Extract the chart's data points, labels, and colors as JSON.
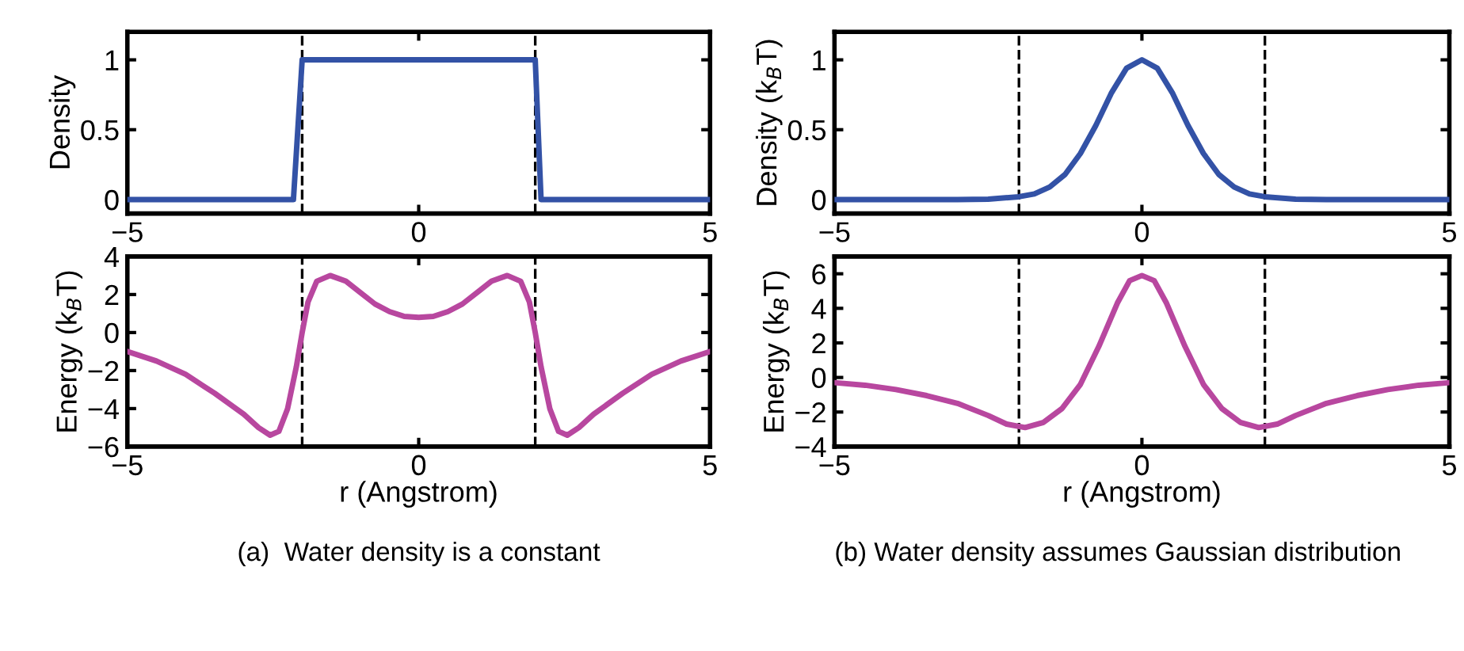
{
  "chart_data": [
    {
      "type": "line",
      "ylabel": "Density",
      "xlim": [
        -5,
        5
      ],
      "xticks": [
        -5,
        0,
        5
      ],
      "ylim": [
        -0.1,
        1.2
      ],
      "yticks": [
        0,
        0.5,
        1
      ],
      "series": [
        {
          "color": "#3352a6",
          "x": [
            -5,
            -2.15,
            -2,
            2,
            2.1,
            5
          ],
          "values": [
            0,
            0,
            1,
            1,
            0,
            0
          ]
        }
      ],
      "ref_lines": [
        {
          "axis": "x",
          "value": -2,
          "color": "#000000",
          "line_style": "dashed"
        },
        {
          "axis": "x",
          "value": 2,
          "color": "#000000",
          "line_style": "dashed"
        }
      ]
    },
    {
      "type": "line",
      "ylabel": "Density (k$_{B}$T)",
      "xlim": [
        -5,
        5
      ],
      "xticks": [
        -5,
        0,
        5
      ],
      "ylim": [
        -0.1,
        1.2
      ],
      "yticks": [
        0,
        0.5,
        1
      ],
      "series": [
        {
          "color": "#3352a6",
          "x": [
            -5,
            -4,
            -3,
            -2.5,
            -2,
            -1.75,
            -1.5,
            -1.25,
            -1,
            -0.75,
            -0.5,
            -0.25,
            0,
            0.25,
            0.5,
            0.75,
            1,
            1.25,
            1.5,
            1.75,
            2,
            2.5,
            3,
            4,
            5
          ],
          "values": [
            0,
            0,
            0,
            0.003,
            0.02,
            0.04,
            0.09,
            0.18,
            0.33,
            0.53,
            0.76,
            0.94,
            1,
            0.94,
            0.76,
            0.53,
            0.33,
            0.18,
            0.09,
            0.04,
            0.02,
            0.003,
            0,
            0,
            0
          ]
        }
      ],
      "ref_lines": [
        {
          "axis": "x",
          "value": -2,
          "color": "#000000",
          "line_style": "dashed"
        },
        {
          "axis": "x",
          "value": 2,
          "color": "#000000",
          "line_style": "dashed"
        }
      ]
    },
    {
      "type": "line",
      "ylabel": "Energy (k$_{B}$T)",
      "xlabel": "r (Angstrom)",
      "xlim": [
        -5,
        5
      ],
      "xticks": [
        -5,
        0,
        5
      ],
      "ylim": [
        -6,
        4
      ],
      "yticks": [
        {
          "value": -6,
          "label": "−6"
        },
        {
          "value": -4,
          "label": "−4"
        },
        {
          "value": -2,
          "label": "−2"
        },
        0,
        2,
        4
      ],
      "series": [
        {
          "color": "#b8479f",
          "x": [
            -5,
            -4.5,
            -4,
            -3.5,
            -3,
            -2.75,
            -2.55,
            -2.4,
            -2.25,
            -2.1,
            -2,
            -1.9,
            -1.75,
            -1.52,
            -1.25,
            -1,
            -0.75,
            -0.5,
            -0.25,
            0,
            0.25,
            0.5,
            0.75,
            1,
            1.25,
            1.52,
            1.75,
            1.9,
            2,
            2.1,
            2.25,
            2.4,
            2.55,
            2.75,
            3,
            3.5,
            4,
            4.5,
            5
          ],
          "values": [
            -1,
            -1.5,
            -2.2,
            -3.2,
            -4.3,
            -5,
            -5.4,
            -5.2,
            -4,
            -1.8,
            0,
            1.6,
            2.7,
            3,
            2.7,
            2.1,
            1.5,
            1.1,
            0.85,
            0.8,
            0.85,
            1.1,
            1.5,
            2.1,
            2.7,
            3,
            2.7,
            1.6,
            0,
            -1.8,
            -4,
            -5.2,
            -5.4,
            -5,
            -4.3,
            -3.2,
            -2.2,
            -1.5,
            -1
          ]
        }
      ],
      "ref_lines": [
        {
          "axis": "x",
          "value": -2,
          "color": "#000000",
          "line_style": "dashed"
        },
        {
          "axis": "x",
          "value": 2,
          "color": "#000000",
          "line_style": "dashed"
        }
      ],
      "annotations": [
        "(a)  Water density is a constant"
      ]
    },
    {
      "type": "line",
      "ylabel": "Energy (k$_{B}$T)",
      "xlabel": "r (Angstrom)",
      "xlim": [
        -5,
        5
      ],
      "xticks": [
        -5,
        0,
        5
      ],
      "ylim": [
        -4,
        7
      ],
      "yticks": [
        {
          "value": -4,
          "label": "−4"
        },
        {
          "value": -2,
          "label": "−2"
        },
        0,
        2,
        4,
        6
      ],
      "series": [
        {
          "color": "#b8479f",
          "x": [
            -5,
            -4.5,
            -4,
            -3.5,
            -3,
            -2.5,
            -2.2,
            -1.9,
            -1.6,
            -1.3,
            -1,
            -0.7,
            -0.4,
            -0.2,
            0,
            0.2,
            0.4,
            0.7,
            1,
            1.3,
            1.6,
            1.9,
            2.2,
            2.5,
            3,
            3.5,
            4,
            4.5,
            5
          ],
          "values": [
            -0.3,
            -0.45,
            -0.7,
            -1.05,
            -1.5,
            -2.2,
            -2.7,
            -2.9,
            -2.6,
            -1.8,
            -0.4,
            1.8,
            4.3,
            5.6,
            5.9,
            5.6,
            4.3,
            1.8,
            -0.4,
            -1.8,
            -2.6,
            -2.9,
            -2.7,
            -2.2,
            -1.5,
            -1.05,
            -0.7,
            -0.45,
            -0.3
          ]
        }
      ],
      "ref_lines": [
        {
          "axis": "x",
          "value": -2,
          "color": "#000000",
          "line_style": "dashed"
        },
        {
          "axis": "x",
          "value": 2,
          "color": "#000000",
          "line_style": "dashed"
        }
      ],
      "annotations": [
        "(b) Water density assumes Gaussian distribution"
      ]
    }
  ]
}
